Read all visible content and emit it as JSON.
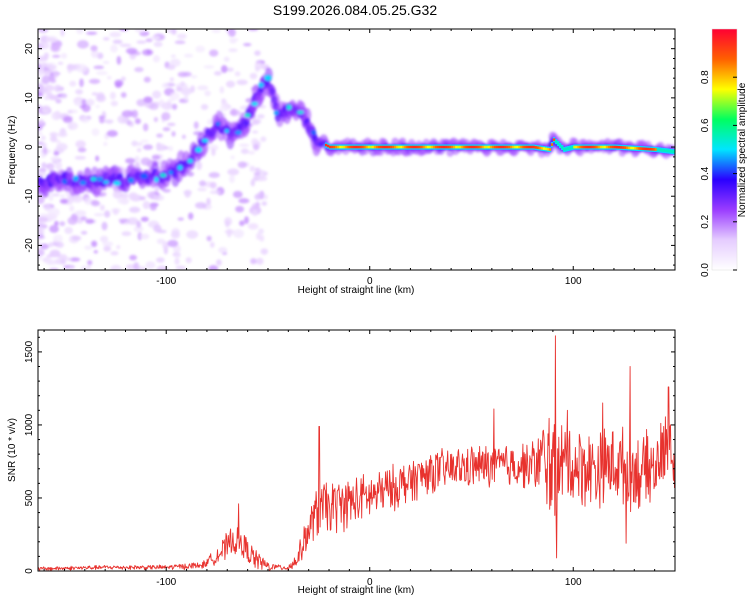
{
  "chart_data": [
    {
      "type": "heatmap",
      "title": "S199.2026.084.05.25.G32",
      "xlabel": "Height of straight line (km)",
      "ylabel": "Frequency (Hz)",
      "xlim": [
        -163,
        150
      ],
      "ylim": [
        -25,
        24
      ],
      "xticks": [
        -100,
        0,
        100
      ],
      "xtick_labels": [
        "-100",
        "0",
        "100"
      ],
      "yticks": [
        -20,
        -10,
        0,
        10,
        20
      ],
      "ytick_labels": [
        "-20",
        "-10",
        "0",
        "10",
        "20"
      ],
      "colorbar": {
        "label": "Normalized spectral amplitude",
        "range": [
          0,
          1
        ],
        "ticks": [
          0.0,
          0.2,
          0.4,
          0.6,
          0.8
        ],
        "tick_labels": [
          "0.0",
          "0.2",
          "0.4",
          "0.6",
          "0.8"
        ],
        "colors": [
          "#ffffff",
          "#e5ccff",
          "#9a3cff",
          "#2a00ff",
          "#00e5ff",
          "#00ff60",
          "#ffff00",
          "#ff6000",
          "#ff0033"
        ]
      },
      "ridge": {
        "x": [
          -163,
          -150,
          -140,
          -130,
          -120,
          -110,
          -100,
          -92,
          -85,
          -80,
          -75,
          -70,
          -65,
          -60,
          -55,
          -50,
          -45,
          -40,
          -35,
          -30,
          -25,
          -20,
          0,
          20,
          40,
          60,
          80,
          88,
          90,
          95,
          100,
          120,
          140,
          150
        ],
        "y": [
          -7,
          -6.5,
          -7,
          -6.5,
          -7,
          -6,
          -6,
          -4,
          -1,
          2,
          5,
          3,
          3,
          6,
          11,
          14,
          6,
          8,
          7,
          4,
          1,
          0,
          0,
          0,
          0,
          0,
          0,
          -0.5,
          1.5,
          -0.5,
          0,
          0,
          -0.5,
          -1
        ]
      }
    },
    {
      "type": "line",
      "title": "",
      "xlabel": "Height of straight line (km)",
      "ylabel": "SNR (10 * v/v)",
      "xlim": [
        -163,
        150
      ],
      "ylim": [
        0,
        1650
      ],
      "xticks": [
        -100,
        0,
        100
      ],
      "xtick_labels": [
        "-100",
        "0",
        "100"
      ],
      "yticks": [
        0,
        500,
        1000,
        1500
      ],
      "ytick_labels": [
        "0",
        "500",
        "1000",
        "1500"
      ],
      "series": [
        {
          "name": "SNR",
          "color": "#e8322e",
          "envelope": {
            "x": [
              -163,
              -130,
              -100,
              -82,
              -77,
              -72,
              -67,
              -62,
              -57,
              -50,
              -40,
              -36,
              -30,
              -25,
              -20,
              -10,
              0,
              10,
              20,
              30,
              40,
              50,
              60,
              70,
              80,
              88,
              92,
              96,
              100,
              110,
              120,
              130,
              140,
              147,
              150
            ],
            "y": [
              15,
              25,
              25,
              40,
              90,
              140,
              210,
              170,
              90,
              30,
              25,
              70,
              280,
              420,
              430,
              470,
              510,
              560,
              620,
              680,
              700,
              715,
              720,
              725,
              730,
              760,
              650,
              740,
              720,
              700,
              740,
              680,
              700,
              880,
              720
            ]
          },
          "noise": {
            "x": [
              -163,
              -100,
              -80,
              -70,
              -60,
              -45,
              -36,
              -25,
              0,
              40,
              80,
              88,
              100,
              130,
              150
            ],
            "amp": [
              15,
              18,
              30,
              110,
              100,
              15,
              60,
              220,
              180,
              160,
              180,
              420,
              300,
              300,
              250
            ]
          },
          "peaks": [
            {
              "x": -64.5,
              "y": 460
            },
            {
              "x": -24.8,
              "y": 990
            },
            {
              "x": 61.0,
              "y": 1110
            },
            {
              "x": 91.3,
              "y": 1610
            },
            {
              "x": 97.2,
              "y": 1100
            },
            {
              "x": 114.5,
              "y": 1150
            },
            {
              "x": 128.0,
              "y": 1400
            },
            {
              "x": 146.8,
              "y": 1260
            },
            {
              "x": 91.8,
              "y": 90
            },
            {
              "x": 126.0,
              "y": 190
            }
          ]
        }
      ]
    }
  ]
}
